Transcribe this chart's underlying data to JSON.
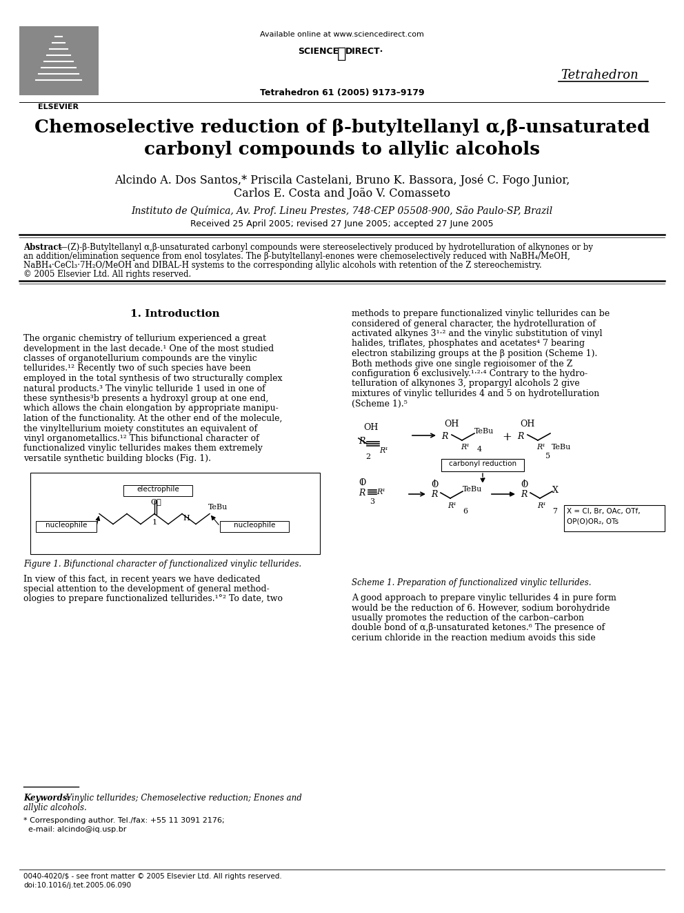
{
  "bg_color": "#ffffff",
  "available_online": "Available online at www.sciencedirect.com",
  "sciencedirect": "SCIENCE  DIRECT·",
  "journal_name_right": "Tetrahedron",
  "journal_citation": "Tetrahedron 61 (2005) 9173–9179",
  "title_line1": "Chemoselective reduction of β-butyltellanyl α,β-unsaturated",
  "title_line2": "carbonyl compounds to allylic alcohols",
  "authors_line1": "Alcindo A. Dos Santos,* Priscila Castelani, Bruno K. Bassora, José C. Fogo Junior,",
  "authors_line2": "Carlos E. Costa and João V. Comasseto",
  "affiliation": "Instituto de Química, Av. Prof. Lineu Prestes, 748-CEP 05508-900, São Paulo-SP, Brazil",
  "received": "Received 25 April 2005; revised 27 June 2005; accepted 27 June 2005",
  "abstract_bold": "Abstract",
  "abstract_body": "—(Z)-β-Butyltellanyl α,β-unsaturated carbonyl compounds were stereoselectively produced by hydrotelluration of alkynones or by\nan addition/elimination sequence from enol tosylates. The β-butyltellanyl-enones were chemoselectively reduced with NaBH₄/MeOH,\nNaBH₄·CeCl₃·7H₂O/MeOH and DIBAL-H systems to the corresponding allylic alcohols with retention of the Z stereochemistry.\n© 2005 Elsevier Ltd. All rights reserved.",
  "section1": "1. Introduction",
  "col1_p1_lines": [
    "The organic chemistry of tellurium experienced a great",
    "development in the last decade.¹ One of the most studied",
    "classes of organotellurium compounds are the vinylic",
    "tellurides.¹² Recently two of such species have been",
    "employed in the total synthesis of two structurally complex",
    "natural products.³ The vinylic telluride 1 used in one of",
    "these synthesis³b presents a hydroxyl group at one end,",
    "which allows the chain elongation by appropriate manipu-",
    "lation of the functionality. At the other end of the molecule,",
    "the vinyltellurium moiety constitutes an equivalent of",
    "vinyl organometallics.¹² This bifunctional character of",
    "functionalized vinylic tellurides makes them extremely",
    "versatile synthetic building blocks (Fig. 1)."
  ],
  "fig1_caption": "Figure 1. Bifunctional character of functionalized vinylic tellurides.",
  "col1_p2_lines": [
    "In view of this fact, in recent years we have dedicated",
    "special attention to the development of general method-",
    "ologies to prepare functionalized tellurides.¹°² To date, two"
  ],
  "col2_p1_lines": [
    "methods to prepare functionalized vinylic tellurides can be",
    "considered of general character, the hydrotelluration of",
    "activated alkynes 3¹·² and the vinylic substitution of vinyl",
    "halides, triflates, phosphates and acetates⁴ 7 bearing",
    "electron stabilizing groups at the β position (Scheme 1).",
    "Both methods give one single regioisomer of the Z",
    "configuration 6 exclusively.¹·²·⁴ Contrary to the hydro-",
    "telluration of alkynones 3, propargyl alcohols 2 give",
    "mixtures of vinylic tellurides 4 and 5 on hydrotelluration",
    "(Scheme 1).⁵"
  ],
  "scheme1_caption": "Scheme 1. Preparation of functionalized vinylic tellurides.",
  "col2_p2_lines": [
    "A good approach to prepare vinylic tellurides 4 in pure form",
    "would be the reduction of 6. However, sodium borohydride",
    "usually promotes the reduction of the carbon–carbon",
    "double bond of α,β-unsaturated ketones.⁶ The presence of",
    "cerium chloride in the reaction medium avoids this side"
  ],
  "keywords_bold": "Keywords:",
  "keywords_italic": " Vinylic tellurides; Chemoselective reduction; Enones and",
  "keywords_line2": "allylic alcohols.",
  "footnote_star": "* Corresponding author. Tel./fax: +55 11 3091 2176;",
  "footnote_email": "  e-mail: alcindo@iq.usp.br",
  "footer1": "0040-4020/$ - see front matter © 2005 Elsevier Ltd. All rights reserved.",
  "footer2": "doi:10.1016/j.tet.2005.06.090"
}
